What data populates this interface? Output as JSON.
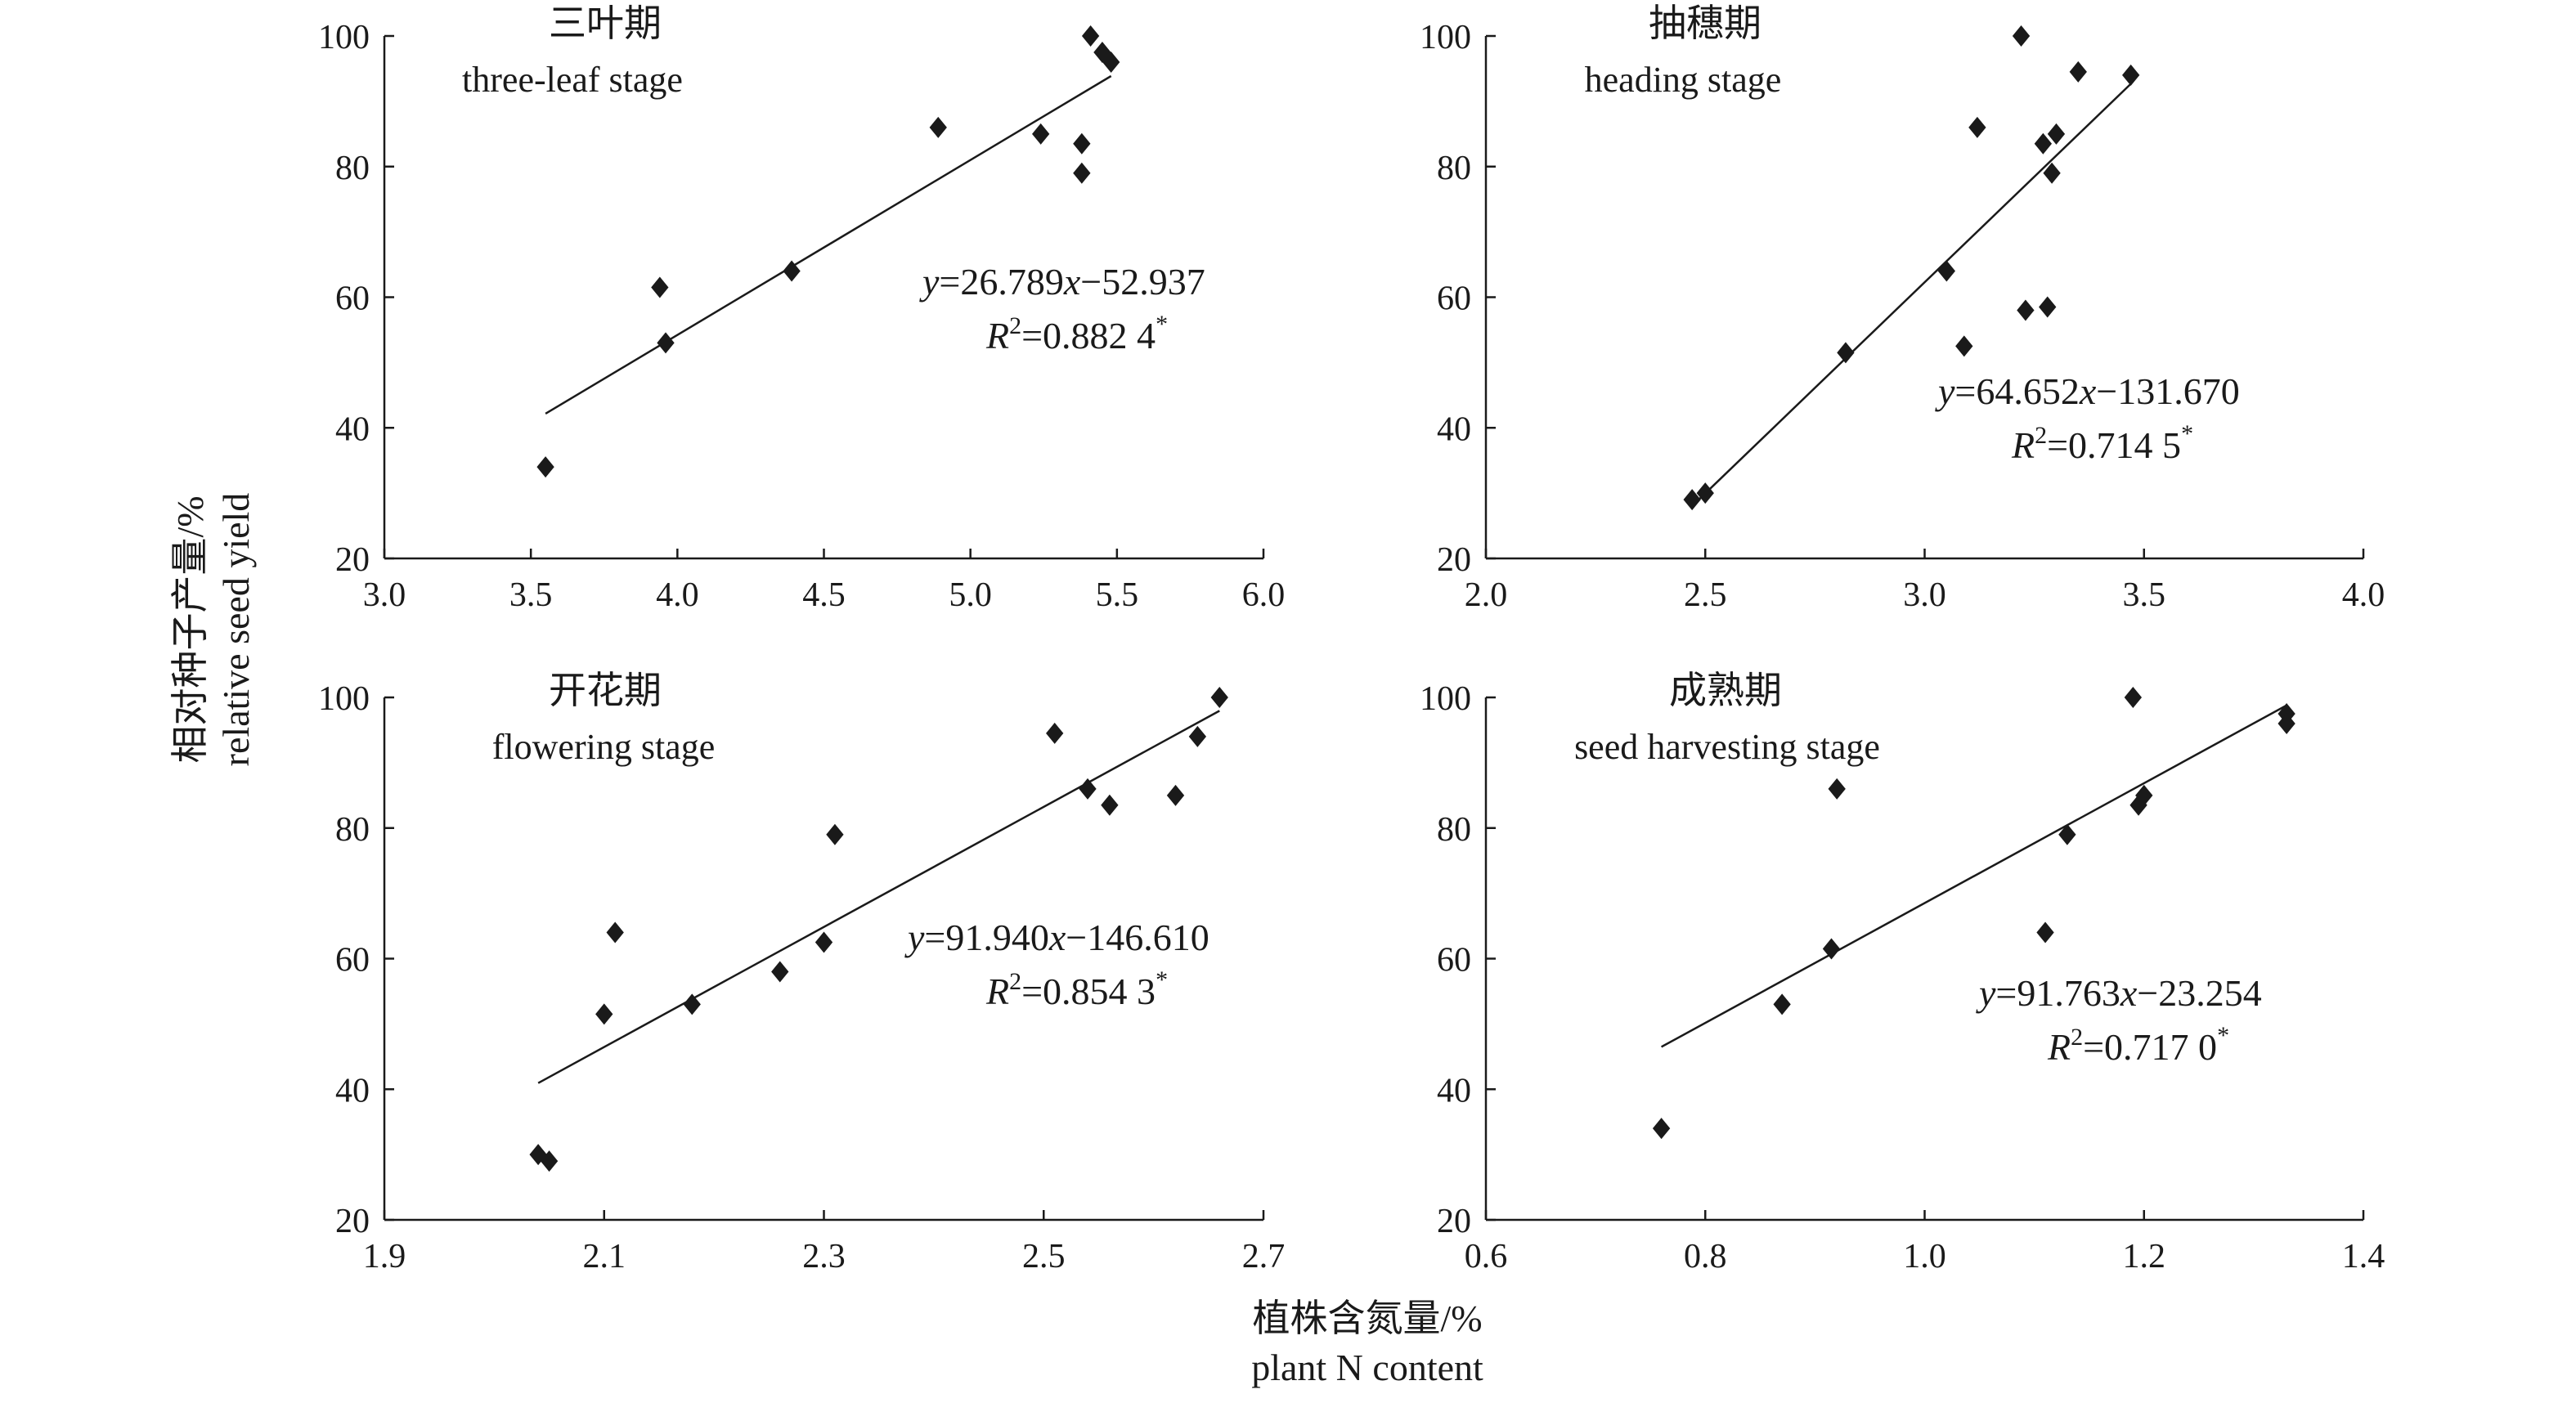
{
  "figure": {
    "x_label_cn": "植株含氮量/%",
    "x_label_en": "plant N content",
    "y_label_cn": "相对种子产量/%",
    "y_label_en": "relative seed yield"
  },
  "chart_data": [
    {
      "type": "scatter",
      "id": "three-leaf",
      "title_cn": "三叶期",
      "title_en": "three-leaf stage",
      "xlim": [
        3.0,
        6.0
      ],
      "xticks": [
        3.0,
        3.5,
        4.0,
        4.5,
        5.0,
        5.5,
        6.0
      ],
      "xtick_labels": [
        "3.0",
        "3.5",
        "4.0",
        "4.5",
        "5.0",
        "5.5",
        "6.0"
      ],
      "ylim": [
        20,
        100
      ],
      "yticks": [
        20,
        40,
        60,
        80,
        100
      ],
      "ytick_labels": [
        "20",
        "40",
        "60",
        "80",
        "100"
      ],
      "x": [
        3.55,
        3.94,
        3.96,
        4.39,
        4.89,
        5.24,
        5.38,
        5.38,
        5.41,
        5.45,
        5.48
      ],
      "y": [
        34,
        61.5,
        53,
        64,
        86,
        85,
        83.5,
        79,
        100,
        97.5,
        96
      ],
      "fit": {
        "slope": 26.789,
        "intercept": -52.937,
        "x_range": [
          3.55,
          5.48
        ]
      },
      "equation": {
        "y": "y",
        "mid": "=26.789",
        "x": "x",
        "rest": "−52.937"
      },
      "r2": {
        "r": "R",
        "sup": "2",
        "value": "=0.882 4",
        "sig": "*"
      }
    },
    {
      "type": "scatter",
      "id": "heading",
      "title_cn": "抽穗期",
      "title_en": "heading stage",
      "xlim": [
        2.0,
        4.0
      ],
      "xticks": [
        2.0,
        2.5,
        3.0,
        3.5,
        4.0
      ],
      "xtick_labels": [
        "2.0",
        "2.5",
        "3.0",
        "3.5",
        "4.0"
      ],
      "ylim": [
        20,
        100
      ],
      "yticks": [
        20,
        40,
        60,
        80,
        100
      ],
      "ytick_labels": [
        "20",
        "40",
        "60",
        "80",
        "100"
      ],
      "x": [
        2.47,
        2.5,
        2.82,
        3.05,
        3.09,
        3.12,
        3.22,
        3.23,
        3.27,
        3.28,
        3.29,
        3.3,
        3.35,
        3.47
      ],
      "y": [
        29,
        30,
        51.5,
        64,
        52.5,
        86,
        100,
        58,
        83.5,
        58.5,
        79,
        85,
        94.5,
        94
      ],
      "fit": {
        "slope": 64.652,
        "intercept": -131.67,
        "x_range": [
          2.47,
          3.47
        ]
      },
      "equation": {
        "y": "y",
        "mid": "=64.652",
        "x": "x",
        "rest": "−131.670"
      },
      "r2": {
        "r": "R",
        "sup": "2",
        "value": "=0.714 5",
        "sig": "*"
      }
    },
    {
      "type": "scatter",
      "id": "flowering",
      "title_cn": "开花期",
      "title_en": "flowering stage",
      "xlim": [
        1.9,
        2.7
      ],
      "xticks": [
        1.9,
        2.1,
        2.3,
        2.5,
        2.7
      ],
      "xtick_labels": [
        "1.9",
        "2.1",
        "2.3",
        "2.5",
        "2.7"
      ],
      "ylim": [
        20,
        100
      ],
      "yticks": [
        20,
        40,
        60,
        80,
        100
      ],
      "ytick_labels": [
        "20",
        "40",
        "60",
        "80",
        "100"
      ],
      "x": [
        2.04,
        2.05,
        2.1,
        2.11,
        2.18,
        2.26,
        2.3,
        2.31,
        2.51,
        2.54,
        2.56,
        2.62,
        2.64,
        2.66
      ],
      "y": [
        30,
        29,
        51.5,
        64,
        53,
        58,
        62.5,
        79,
        94.5,
        86,
        83.5,
        85,
        94,
        100
      ],
      "fit": {
        "slope": 91.94,
        "intercept": -146.61,
        "x_range": [
          2.04,
          2.66
        ]
      },
      "equation": {
        "y": "y",
        "mid": "=91.940",
        "x": "x",
        "rest": "−146.610"
      },
      "r2": {
        "r": "R",
        "sup": "2",
        "value": "=0.854 3",
        "sig": "*"
      }
    },
    {
      "type": "scatter",
      "id": "seed-harvesting",
      "title_cn": "成熟期",
      "title_en": "seed harvesting stage",
      "xlim": [
        0.6,
        1.4
      ],
      "xticks": [
        0.6,
        0.8,
        1.0,
        1.2,
        1.4
      ],
      "xtick_labels": [
        "0.6",
        "0.8",
        "1.0",
        "1.2",
        "1.4"
      ],
      "ylim": [
        20,
        100
      ],
      "yticks": [
        20,
        40,
        60,
        80,
        100
      ],
      "ytick_labels": [
        "20",
        "40",
        "60",
        "80",
        "100"
      ],
      "x": [
        0.76,
        0.87,
        0.915,
        0.92,
        1.11,
        1.13,
        1.19,
        1.195,
        1.2,
        1.33,
        1.33
      ],
      "y": [
        34,
        53,
        61.5,
        86,
        64,
        79,
        100,
        83.5,
        85,
        97.5,
        96
      ],
      "fit": {
        "slope": 91.763,
        "intercept": -23.254,
        "x_range": [
          0.76,
          1.33
        ]
      },
      "equation": {
        "y": "y",
        "mid": "=91.763",
        "x": "x",
        "rest": "−23.254"
      },
      "r2": {
        "r": "R",
        "sup": "2",
        "value": "=0.717 0",
        "sig": "*"
      }
    }
  ]
}
